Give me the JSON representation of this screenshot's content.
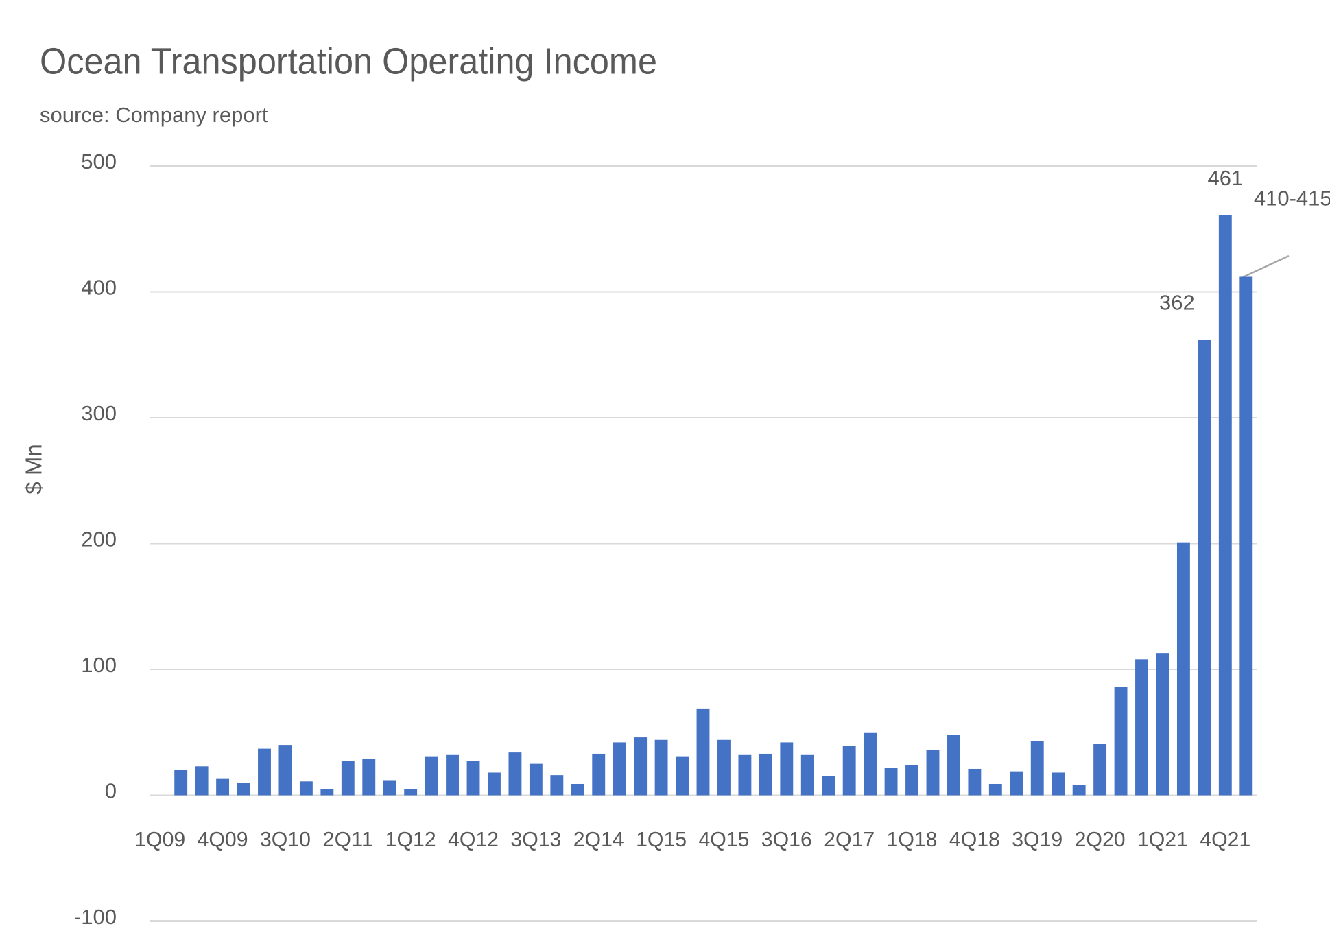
{
  "chart_data": {
    "type": "bar",
    "title": "Ocean Transportation Operating Income",
    "subtitle": "source: Company report",
    "y_label": "$ Mn",
    "categories": [
      "1Q09",
      null,
      null,
      "4Q09",
      null,
      null,
      "3Q10",
      null,
      null,
      "2Q11",
      null,
      null,
      "1Q12",
      null,
      null,
      "4Q12",
      null,
      null,
      "3Q13",
      null,
      null,
      "2Q14",
      null,
      null,
      "1Q15",
      null,
      null,
      "4Q15",
      null,
      null,
      "3Q16",
      null,
      null,
      "2Q17",
      null,
      null,
      "1Q18",
      null,
      null,
      "4Q18",
      null,
      null,
      "3Q19",
      null,
      null,
      "2Q20",
      null,
      null,
      "1Q21",
      null,
      null,
      "4Q21",
      null
    ],
    "values": [
      null,
      20,
      23,
      13,
      10,
      37,
      40,
      11,
      5,
      27,
      29,
      12,
      5,
      31,
      32,
      27,
      18,
      34,
      25,
      16,
      9,
      33,
      42,
      46,
      44,
      31,
      69,
      44,
      32,
      33,
      42,
      32,
      15,
      39,
      50,
      22,
      24,
      36,
      48,
      21,
      9,
      19,
      43,
      18,
      8,
      41,
      86,
      108,
      113,
      201,
      362,
      461,
      412
    ],
    "value_labels": [
      null,
      null,
      null,
      null,
      null,
      null,
      null,
      null,
      null,
      null,
      null,
      null,
      null,
      null,
      null,
      null,
      null,
      null,
      null,
      null,
      null,
      null,
      null,
      null,
      null,
      null,
      null,
      null,
      null,
      null,
      null,
      null,
      null,
      null,
      null,
      null,
      null,
      null,
      null,
      null,
      null,
      null,
      null,
      null,
      null,
      null,
      null,
      null,
      null,
      null,
      "362",
      "461",
      "410-415"
    ],
    "color": "#4472c4",
    "ylim": [
      -100,
      500
    ],
    "yticks": [
      -100,
      0,
      100,
      200,
      300,
      400,
      500
    ],
    "grid": true
  }
}
